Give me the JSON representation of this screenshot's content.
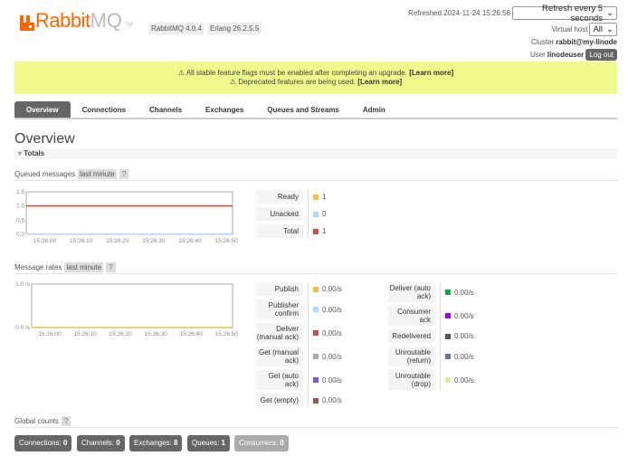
{
  "header": {
    "logo_text_rabbit": "Rabbit",
    "logo_text_mq": "MQ",
    "logo_tm": "TM",
    "version": "RabbitMQ 4.0.4",
    "erlang": "Erlang 26.2.5.5",
    "refreshed": "Refreshed 2024-11-24 15:26:56",
    "refresh_select": "Refresh every 5 seconds",
    "vhost_label": "Virtual host",
    "vhost_select": "All",
    "cluster_label": "Cluster",
    "cluster": "rabbit@my-linode",
    "user_label": "User",
    "user": "linodeuser",
    "logout": "Log out"
  },
  "banner": {
    "line1": "⚠ All stable feature flags must be enabled after completing an upgrade.",
    "line2": "⚠ Deprecated features are being used.",
    "learn_more": "[Learn more]"
  },
  "tabs": [
    {
      "label": "Overview",
      "active": true
    },
    {
      "label": "Connections"
    },
    {
      "label": "Channels"
    },
    {
      "label": "Exchanges"
    },
    {
      "label": "Queues and Streams"
    },
    {
      "label": "Admin"
    }
  ],
  "page_title": "Overview",
  "totals_label": "Totals",
  "queued": {
    "title": "Queued messages",
    "range": "last minute",
    "help": "?",
    "legend": [
      {
        "label": "Ready",
        "value": "1",
        "color": "#edc240"
      },
      {
        "label": "Unacked",
        "value": "0",
        "color": "#afd8f8"
      },
      {
        "label": "Total",
        "value": "1",
        "color": "#cb4b4b"
      }
    ]
  },
  "rates": {
    "title": "Message rates",
    "range": "last minute",
    "help": "?",
    "col1": [
      {
        "label": "Publish",
        "value": "0.00/s",
        "color": "#edc240"
      },
      {
        "label": "Publisher confirm",
        "value": "0.00/s",
        "color": "#afd8f8"
      },
      {
        "label": "Deliver (manual ack)",
        "value": "0.00/s",
        "color": "#cb4b4b"
      },
      {
        "label": "Get (manual ack)",
        "value": "0.00/s",
        "color": "#aaaaaa"
      },
      {
        "label": "Get (auto ack)",
        "value": "0.00/s",
        "color": "#7d5bc9"
      },
      {
        "label": "Get (empty)",
        "value": "0.00/s",
        "color": "#8b5a5a"
      }
    ],
    "col2": [
      {
        "label": "Deliver (auto ack)",
        "value": "0.00/s",
        "color": "#11a841"
      },
      {
        "label": "Consumer ack",
        "value": "0.00/s",
        "color": "#9d04d5"
      },
      {
        "label": "Redelivered",
        "value": "0.00/s",
        "color": "#555555"
      },
      {
        "label": "Unroutable (return)",
        "value": "0.00/s",
        "color": "#607890"
      },
      {
        "label": "Unroutable (drop)",
        "value": "0.00/s",
        "color": "#e2e8a8"
      }
    ]
  },
  "global": {
    "title": "Global counts",
    "help": "?",
    "counts": [
      {
        "label": "Connections:",
        "value": "0"
      },
      {
        "label": "Channels:",
        "value": "0"
      },
      {
        "label": "Exchanges:",
        "value": "8"
      },
      {
        "label": "Queues:",
        "value": "1"
      },
      {
        "label": "Consumers:",
        "value": "0"
      }
    ]
  },
  "chart_data": [
    {
      "type": "line",
      "x": [
        "15:26:00",
        "15:26:10",
        "15:26:20",
        "15:26:30",
        "15:26:40",
        "15:26:50"
      ],
      "yticks": [
        "0.0",
        "0.5",
        "1.0",
        "1.5"
      ],
      "ylim": [
        0,
        1.5
      ],
      "series": [
        {
          "name": "Ready",
          "values": [
            1,
            1,
            1,
            1,
            1,
            1
          ],
          "color": "#edc240"
        },
        {
          "name": "Unacked",
          "values": [
            0,
            0,
            0,
            0,
            0,
            0
          ],
          "color": "#afd8f8"
        },
        {
          "name": "Total",
          "values": [
            1,
            1,
            1,
            1,
            1,
            1
          ],
          "color": "#cb4b4b"
        }
      ]
    },
    {
      "type": "line",
      "x": [
        "15:26:00",
        "15:26:10",
        "15:26:20",
        "15:26:30",
        "15:26:40",
        "15:26:50"
      ],
      "yticks": [
        "0.0 /s",
        "1.0 /s"
      ],
      "ylim": [
        0,
        1
      ],
      "series": [
        {
          "name": "Publish",
          "values": [
            0,
            0,
            0,
            0,
            0,
            0
          ],
          "color": "#edc240"
        }
      ]
    }
  ]
}
